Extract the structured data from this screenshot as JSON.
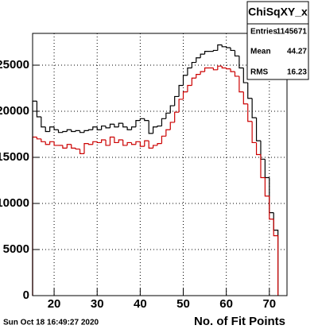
{
  "chart_data": {
    "type": "histogram",
    "bins": [
      15,
      16,
      17,
      18,
      19,
      20,
      21,
      22,
      23,
      24,
      25,
      26,
      27,
      28,
      29,
      30,
      31,
      32,
      33,
      34,
      35,
      36,
      37,
      38,
      39,
      40,
      41,
      42,
      43,
      44,
      45,
      46,
      47,
      48,
      49,
      50,
      51,
      52,
      53,
      54,
      55,
      56,
      57,
      58,
      59,
      60,
      61,
      62,
      63,
      64,
      65,
      66,
      67,
      68,
      69,
      70,
      71,
      72
    ],
    "series": [
      {
        "color": "#000000",
        "values": [
          21100,
          19400,
          18300,
          17800,
          18300,
          18000,
          17700,
          17800,
          18000,
          17800,
          17900,
          17700,
          17900,
          18000,
          18300,
          18000,
          18400,
          18200,
          18600,
          18300,
          18700,
          18300,
          18000,
          18300,
          19000,
          19200,
          19000,
          17600,
          18300,
          18400,
          19200,
          19800,
          20600,
          21600,
          22800,
          23900,
          24700,
          25300,
          25800,
          26200,
          26500,
          26500,
          26600,
          27200,
          27000,
          26900,
          26600,
          26000,
          24700,
          23100,
          21400,
          19300,
          16800,
          14800,
          12800,
          9000,
          7100
        ]
      },
      {
        "color": "#cc0000",
        "values": [
          17200,
          17000,
          16700,
          16400,
          16700,
          16300,
          16300,
          16000,
          16400,
          16000,
          15900,
          15400,
          16500,
          16400,
          16700,
          16600,
          16900,
          16300,
          17200,
          16600,
          16900,
          16300,
          16600,
          16400,
          16700,
          16200,
          16800,
          16000,
          16300,
          16500,
          17300,
          18000,
          18800,
          19900,
          21300,
          22100,
          22800,
          23600,
          24000,
          24300,
          24700,
          24700,
          24500,
          24900,
          24700,
          24600,
          24300,
          23800,
          22100,
          20800,
          18900,
          16600,
          15300,
          12800,
          10800,
          8300,
          6500
        ]
      }
    ],
    "xlim": [
      15,
      74.1
    ],
    "xticks": [
      20,
      30,
      40,
      50,
      60,
      70
    ],
    "ylim": [
      0,
      28450
    ],
    "yticks": [
      0,
      5000,
      10000,
      15000,
      20000,
      25000
    ],
    "grid": true,
    "x_label": "No. of Fit Points",
    "stats": {
      "title": "ChiSqXY_x",
      "entries_label": "Entries",
      "entries": 1145671,
      "mean_label": "Mean",
      "mean": 44.27,
      "rms_label": "RMS",
      "rms": 16.23
    },
    "timestamp": "Sun Oct 18 16:49:27 2020"
  }
}
